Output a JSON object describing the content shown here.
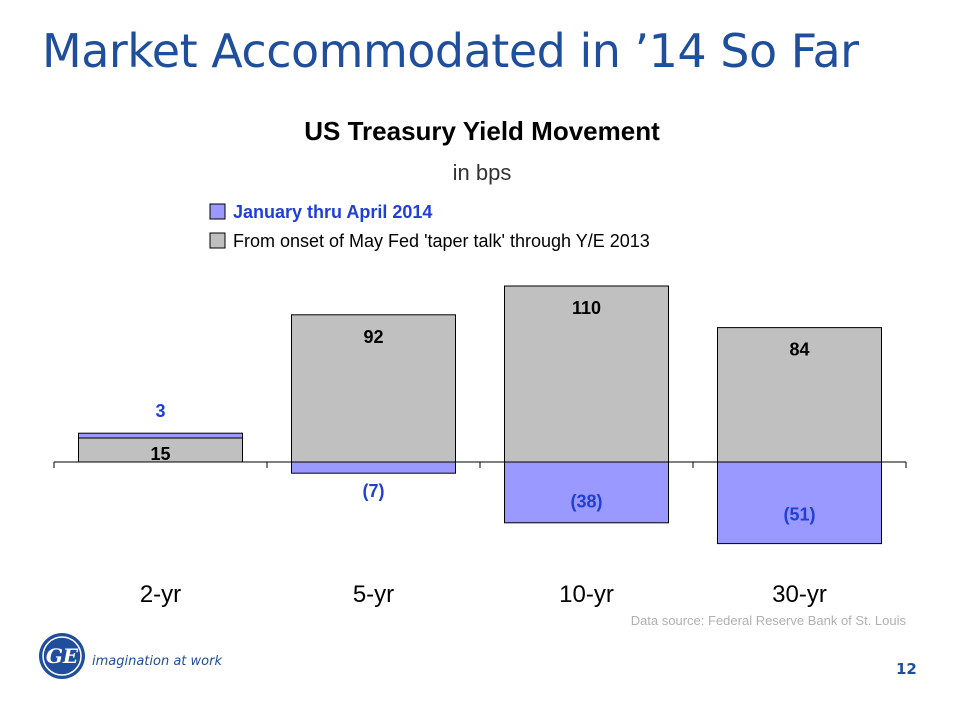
{
  "slide": {
    "title": "Market Accommodated in ’14 So Far",
    "page_number": "12",
    "tagline": "imagination at work",
    "logo_text": "GE",
    "source_note": "Data source:  Federal Reserve Bank of St. Louis"
  },
  "colors": {
    "title": "#1f4e9c",
    "series_2014": "#9999ff",
    "series_2013": "#c0c0c0",
    "series_2014_label": "#1f3fd6"
  },
  "chart_data": {
    "type": "bar",
    "title": "US Treasury Yield Movement",
    "subtitle": "in bps",
    "categories": [
      "2-yr",
      "5-yr",
      "10-yr",
      "30-yr"
    ],
    "stacked": true,
    "legend_position": "top",
    "grid": false,
    "series": [
      {
        "name": "January thru April 2014",
        "values": [
          3,
          -7,
          -38,
          -51
        ],
        "labels": [
          "3",
          "(7)",
          "(38)",
          "(51)"
        ],
        "color": "#9999ff"
      },
      {
        "name": "From onset of May Fed 'taper talk' through Y/E 2013",
        "values": [
          15,
          92,
          110,
          84
        ],
        "labels": [
          "15",
          "92",
          "110",
          "84"
        ],
        "color": "#c0c0c0"
      }
    ]
  }
}
